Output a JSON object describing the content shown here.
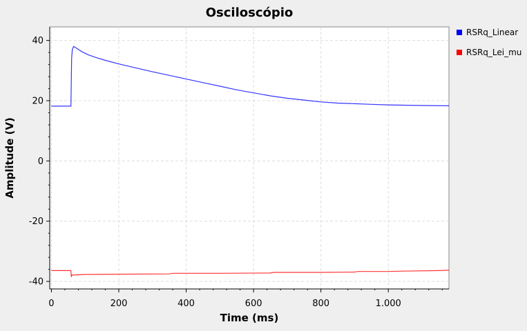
{
  "chart_data": {
    "type": "line",
    "title": "Osciloscópio",
    "xlabel": "Time (ms)",
    "ylabel": "Amplitude (V)",
    "xlim": [
      -5,
      1180
    ],
    "ylim": [
      -42.5,
      44.5
    ],
    "xticks": [
      0,
      200,
      400,
      600,
      800,
      1000
    ],
    "xtick_labels": [
      "0",
      "200",
      "400",
      "600",
      "800",
      "1.000"
    ],
    "yticks": [
      -40,
      -20,
      0,
      20,
      40
    ],
    "ytick_labels": [
      "-40",
      "-20",
      "0",
      "20",
      "40"
    ],
    "grid": true,
    "legend_position": "right",
    "series": [
      {
        "name": "RSRq_Linear",
        "color": "#0000ff",
        "points": [
          [
            0,
            18.2
          ],
          [
            58,
            18.2
          ],
          [
            60,
            34
          ],
          [
            62,
            37
          ],
          [
            66,
            38
          ],
          [
            75,
            37.4
          ],
          [
            90,
            36.3
          ],
          [
            110,
            35.2
          ],
          [
            130,
            34.4
          ],
          [
            160,
            33.4
          ],
          [
            200,
            32.2
          ],
          [
            250,
            30.9
          ],
          [
            300,
            29.6
          ],
          [
            350,
            28.4
          ],
          [
            400,
            27.2
          ],
          [
            450,
            26
          ],
          [
            500,
            24.8
          ],
          [
            550,
            23.6
          ],
          [
            600,
            22.6
          ],
          [
            650,
            21.6
          ],
          [
            700,
            20.8
          ],
          [
            750,
            20.2
          ],
          [
            800,
            19.6
          ],
          [
            850,
            19.2
          ],
          [
            900,
            19.0
          ],
          [
            950,
            18.8
          ],
          [
            1000,
            18.6
          ],
          [
            1100,
            18.4
          ],
          [
            1180,
            18.3
          ]
        ]
      },
      {
        "name": "RSRq_Lei_mu",
        "color": "#ff0000",
        "points": [
          [
            0,
            -36.4
          ],
          [
            58,
            -36.4
          ],
          [
            59,
            -38.5
          ],
          [
            61,
            -37.8
          ],
          [
            64,
            -37.9
          ],
          [
            100,
            -37.7
          ],
          [
            200,
            -37.6
          ],
          [
            350,
            -37.5
          ],
          [
            360,
            -37.3
          ],
          [
            500,
            -37.3
          ],
          [
            650,
            -37.2
          ],
          [
            660,
            -37.0
          ],
          [
            800,
            -37.0
          ],
          [
            900,
            -36.9
          ],
          [
            910,
            -36.7
          ],
          [
            1000,
            -36.7
          ],
          [
            1040,
            -36.6
          ],
          [
            1150,
            -36.4
          ],
          [
            1180,
            -36.3
          ]
        ]
      }
    ]
  }
}
